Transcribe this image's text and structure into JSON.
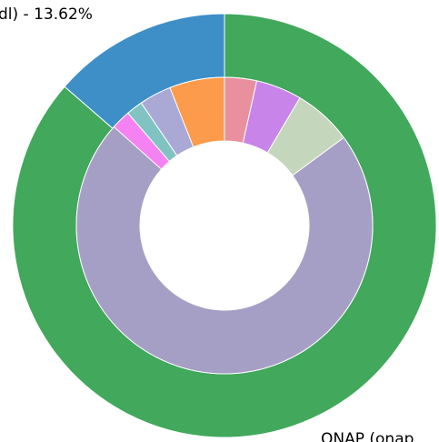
{
  "chart_data": {
    "type": "nested_donut",
    "rings": [
      {
        "labels": [
          "ONAP (onap",
          "dl) - 13.62%"
        ],
        "values": [
          86.38,
          13.62
        ],
        "colors": [
          "#41a85c",
          "#3e8fc8"
        ]
      },
      {
        "values": [
          3.5,
          5.0,
          6.4,
          71.7,
          2.1,
          1.8,
          3.5,
          6.0
        ],
        "colors": [
          "#e8909e",
          "#c884e8",
          "#c4d6bb",
          "#a69fc5",
          "#f582f2",
          "#80c3c2",
          "#aaa8d5",
          "#fb9b4b"
        ]
      }
    ]
  }
}
